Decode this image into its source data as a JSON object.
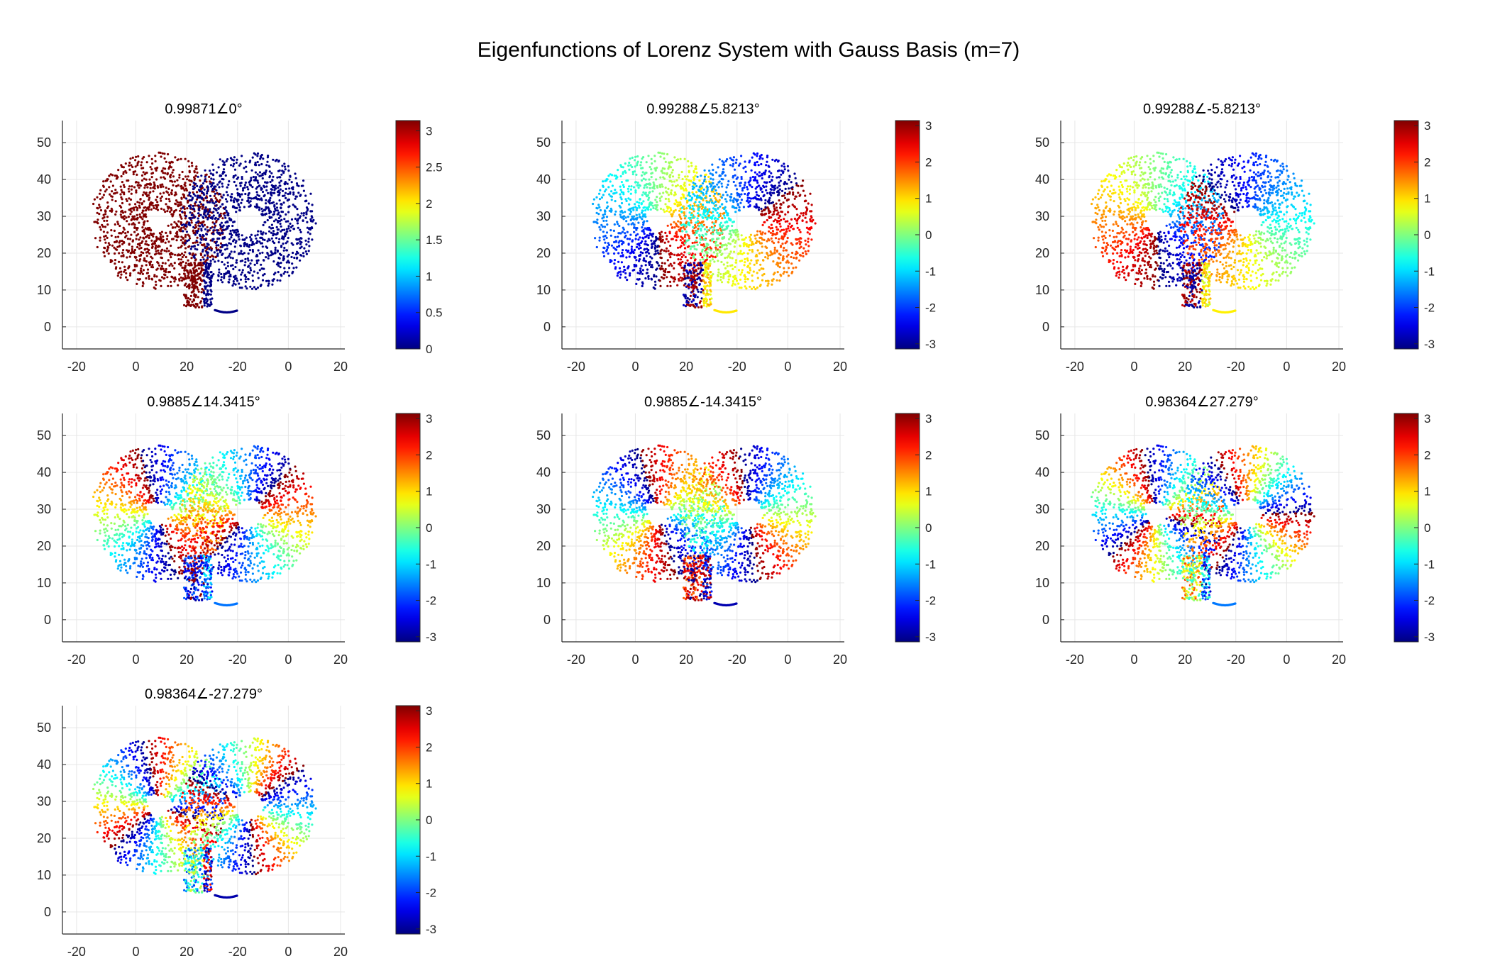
{
  "figure": {
    "title": "Eigenfunctions of Lorenz System with Gauss Basis (m=7)"
  },
  "chart_data": {
    "type": "scatter",
    "title": "Eigenfunctions of Lorenz System with Gauss Basis (m=7)",
    "colormap": "jet",
    "grid": true,
    "y_ticks": [
      0,
      10,
      20,
      30,
      40,
      50
    ],
    "ylim": [
      -6,
      56
    ],
    "x_ticks": [
      "-20",
      "0",
      "20",
      "-20",
      "0",
      "20"
    ],
    "panels": [
      {
        "title": "0.99871∠0°",
        "colorbar": {
          "range": [
            0,
            3.14
          ],
          "ticks": [
            "0",
            "0.5",
            "1",
            "1.5",
            "2",
            "2.5",
            "3"
          ]
        },
        "phase": {
          "mode": "lobe",
          "k": 0,
          "off": 0
        }
      },
      {
        "title": "0.99288∠5.8213°",
        "colorbar": {
          "range": [
            -3.14,
            3.14
          ],
          "ticks": [
            "-3",
            "-2",
            "-1",
            "0",
            "1",
            "2",
            "3"
          ]
        },
        "phase": {
          "mode": "angle",
          "k": 1,
          "off": 1.6
        }
      },
      {
        "title": "0.99288∠-5.8213°",
        "colorbar": {
          "range": [
            -3.14,
            3.14
          ],
          "ticks": [
            "-3",
            "-2",
            "-1",
            "0",
            "1",
            "2",
            "3"
          ]
        },
        "phase": {
          "mode": "angle",
          "k": -1,
          "off": -1.6
        }
      },
      {
        "title": "0.9885∠14.3415°",
        "colorbar": {
          "range": [
            -3.14,
            3.14
          ],
          "ticks": [
            "-3",
            "-2",
            "-1",
            "0",
            "1",
            "2",
            "3"
          ]
        },
        "phase": {
          "mode": "angle",
          "k": 2,
          "off": 0.6
        }
      },
      {
        "title": "0.9885∠-14.3415°",
        "colorbar": {
          "range": [
            -3.14,
            3.14
          ],
          "ticks": [
            "-3",
            "-2",
            "-1",
            "0",
            "1",
            "2",
            "3"
          ]
        },
        "phase": {
          "mode": "angle",
          "k": -2,
          "off": -0.6
        }
      },
      {
        "title": "0.98364∠27.279°",
        "colorbar": {
          "range": [
            -3.14,
            3.14
          ],
          "ticks": [
            "-3",
            "-2",
            "-1",
            "0",
            "1",
            "2",
            "3"
          ]
        },
        "phase": {
          "mode": "angle",
          "k": 3,
          "off": 2.2
        }
      },
      {
        "title": "0.98364∠-27.279°",
        "colorbar": {
          "range": [
            -3.14,
            3.14
          ],
          "ticks": [
            "-3",
            "-2",
            "-1",
            "0",
            "1",
            "2",
            "3"
          ]
        },
        "phase": {
          "mode": "angle",
          "k": -3,
          "off": -2.2
        }
      }
    ]
  }
}
